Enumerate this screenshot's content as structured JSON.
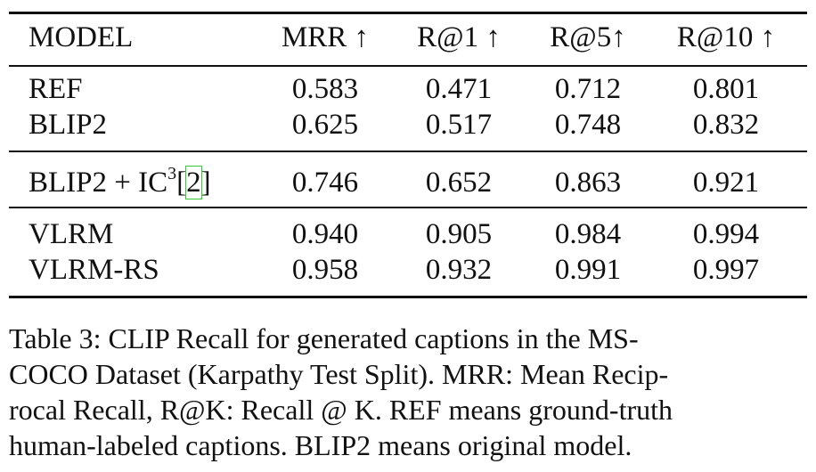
{
  "table": {
    "header": [
      "MODEL",
      "MRR ↑",
      "R@1 ↑",
      "R@5↑",
      "R@10 ↑"
    ],
    "groups": [
      [
        [
          "REF",
          "0.583",
          "0.471",
          "0.712",
          "0.801"
        ],
        [
          "BLIP2",
          "0.625",
          "0.517",
          "0.748",
          "0.832"
        ]
      ],
      [
        [
          {
            "text": "BLIP2 + IC",
            "sup": "3",
            "cite_open": "[",
            "cite": "2",
            "cite_close": "]"
          },
          "0.746",
          "0.652",
          "0.863",
          "0.921"
        ]
      ],
      [
        [
          "VLRM",
          "0.940",
          "0.905",
          "0.984",
          "0.994"
        ],
        [
          "VLRM-RS",
          "0.958",
          "0.932",
          "0.991",
          "0.997"
        ]
      ]
    ]
  },
  "caption": [
    "Table 3: CLIP Recall for generated captions in the MS-",
    "COCO Dataset (Karpathy Test Split). MRR: Mean Recip-",
    "rocal Recall, R@K: Recall @ K. REF means ground-truth",
    "human-labeled captions. BLIP2 means original model."
  ]
}
